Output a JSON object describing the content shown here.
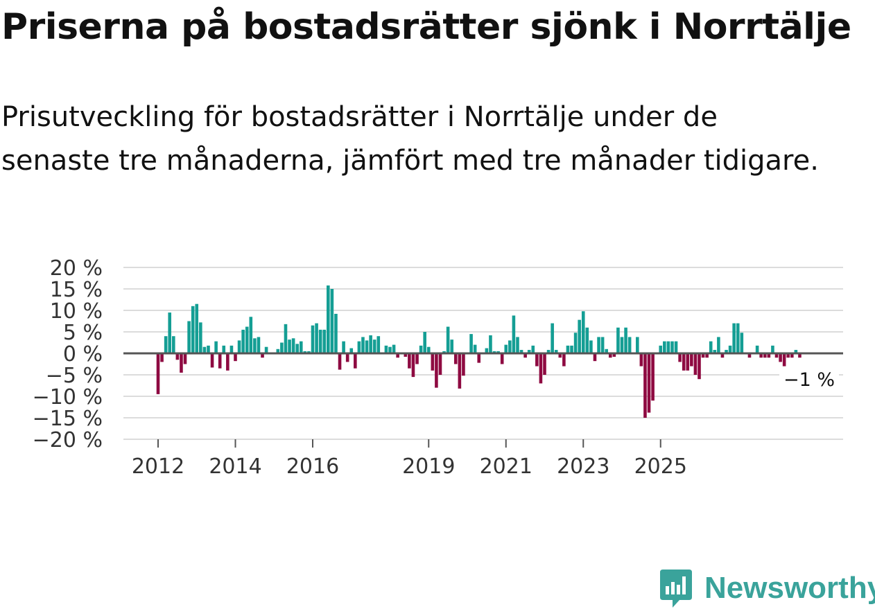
{
  "title": "Priserna på bostadsrätter sjönk i Norrtälje",
  "subtitle": "Prisutveckling för bostadsrätter i Norrtälje under de senaste tre månaderna, jämfört med tre månader tidigare.",
  "brand": {
    "name": "Newsworthy"
  },
  "colors": {
    "positive": "#149e94",
    "negative": "#8e0a41",
    "grid": "#dcdcdc",
    "zero": "#555555",
    "brand": "#3aa39b"
  },
  "chart_data": {
    "type": "bar",
    "title": "",
    "xlabel": "",
    "ylabel": "",
    "ylim": [
      -20,
      20
    ],
    "yticks": [
      20,
      15,
      10,
      5,
      0,
      -5,
      -10,
      -15,
      -20
    ],
    "ytick_labels": [
      "20 %",
      "15 %",
      "10 %",
      "5 %",
      "0 %",
      "−5 %",
      "−10 %",
      "−15 %",
      "−20 %"
    ],
    "xtick_labels": [
      "2012",
      "2014",
      "2016",
      "2019",
      "2021",
      "2023",
      "2025"
    ],
    "xtick_index": [
      0,
      20,
      40,
      70,
      90,
      110,
      130
    ],
    "series_start": "2012-01",
    "last_value_label": "−1 %",
    "values": [
      -9.5,
      -2,
      4,
      9.5,
      4,
      -1.5,
      -4.5,
      -2.5,
      7.5,
      11,
      11.5,
      7.2,
      1.5,
      1.8,
      -3.3,
      2.8,
      -3.5,
      1.8,
      -4,
      1.8,
      -1.8,
      3,
      5.5,
      6.2,
      8.5,
      3.5,
      3.8,
      -1,
      1.5,
      0,
      0,
      1,
      2.5,
      6.8,
      3.2,
      3.5,
      2.2,
      2.8,
      0.5,
      0.5,
      6.5,
      7,
      5.5,
      5.5,
      15.8,
      15,
      9.2,
      -3.8,
      2.8,
      -2,
      1.2,
      -3.5,
      2.8,
      3.8,
      3,
      4.2,
      3.2,
      4,
      0,
      1.8,
      1.5,
      2,
      -1,
      0.2,
      -0.8,
      -3.5,
      -5.5,
      -2.5,
      1.8,
      5,
      1.5,
      -4,
      -8,
      -5,
      0.5,
      6.2,
      3.2,
      -2.5,
      -8.2,
      -5.2,
      0,
      4.5,
      2,
      -2.2,
      0,
      1.2,
      4.2,
      0.5,
      0.5,
      -2.5,
      2,
      3,
      8.8,
      3.8,
      0.8,
      -1,
      0.8,
      1.8,
      -3,
      -7,
      -5,
      0.8,
      7,
      0.8,
      -1,
      -3,
      1.8,
      1.8,
      4.8,
      7.8,
      9.8,
      6,
      3,
      -1.8,
      3.8,
      3.8,
      1,
      -1,
      -0.8,
      6,
      3.8,
      6,
      3.8,
      0,
      3.8,
      -3,
      -15,
      -13.8,
      -11,
      0,
      1.8,
      2.8,
      2.8,
      2.8,
      2.8,
      -2,
      -4,
      -4,
      -3,
      -5,
      -6,
      -1,
      -1,
      2.8,
      0.8,
      3.8,
      -1,
      0.8,
      1.8,
      7,
      7,
      4.8,
      0,
      -1,
      0,
      1.8,
      -1,
      -1,
      -1,
      1.8,
      -1,
      -2,
      -3,
      -1,
      -1,
      0.8,
      -1
    ]
  }
}
